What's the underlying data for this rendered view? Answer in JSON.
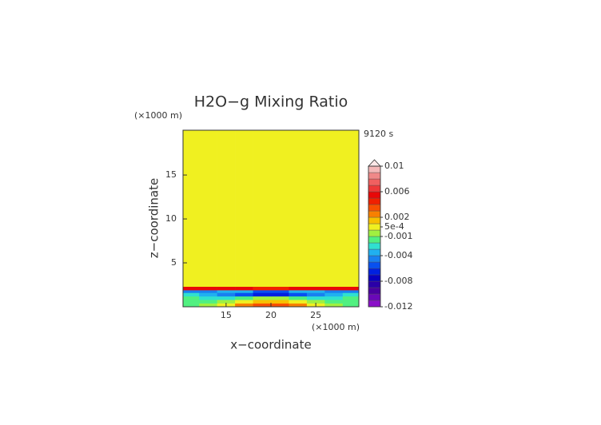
{
  "chart_data": {
    "type": "contour",
    "title": "H2O−g Mixing Ratio",
    "x_label": "x−coordinate",
    "y_label": "z−coordinate",
    "x_unit": "(×1000 m)",
    "y_unit": "(×1000 m)",
    "time_label": "9120 s",
    "xlim": [
      10.2,
      29.8
    ],
    "ylim": [
      0,
      20.1
    ],
    "xticks": [
      15,
      20,
      25
    ],
    "yticks": [
      5,
      10,
      15
    ],
    "x_edges": [
      10.2,
      12,
      14,
      16,
      18,
      20,
      22,
      24,
      26,
      28,
      29.8
    ],
    "y_edges": [
      0,
      0.4,
      0.8,
      1.2,
      1.6,
      1.9,
      2.3,
      20.1
    ],
    "z": [
      [
        -0.0015,
        -0.0005,
        0.0005,
        0.0025,
        0.0035,
        0.0035,
        0.0025,
        0.0005,
        -0.0005,
        -0.0015
      ],
      [
        -0.0015,
        -0.0015,
        -0.0005,
        0.0005,
        0.0015,
        0.0015,
        0.0005,
        -0.0005,
        -0.0015,
        -0.0015
      ],
      [
        -0.0015,
        -0.0025,
        -0.0025,
        -0.0015,
        -0.0005,
        -0.0005,
        -0.0015,
        -0.0025,
        -0.0025,
        -0.0015
      ],
      [
        -0.0025,
        -0.0035,
        -0.0045,
        -0.0055,
        -0.0065,
        -0.0065,
        -0.0055,
        -0.0045,
        -0.0035,
        -0.0025
      ],
      [
        -0.0045,
        -0.0045,
        -0.0035,
        -0.0035,
        -0.0055,
        -0.0055,
        -0.0035,
        -0.0035,
        -0.0045,
        -0.0045
      ],
      [
        0.0055,
        0.0055,
        0.0055,
        0.0055,
        0.0045,
        0.0045,
        0.0055,
        0.0055,
        0.0055,
        0.0055
      ],
      [
        0.0005,
        0.0005,
        0.0005,
        0.0005,
        0.0005,
        0.0005,
        0.0005,
        0.0005,
        0.0005,
        0.0005
      ]
    ],
    "levels": [
      -0.012,
      -0.011,
      -0.01,
      -0.009,
      -0.008,
      -0.007,
      -0.006,
      -0.005,
      -0.004,
      -0.003,
      -0.002,
      -0.001,
      0,
      0.001,
      0.002,
      0.003,
      0.004,
      0.005,
      0.006,
      0.007,
      0.008,
      0.009,
      0.01
    ],
    "colors": [
      "#8a10c8",
      "#6a08b8",
      "#4a00a0",
      "#2a00a8",
      "#0800c0",
      "#0020e0",
      "#0850f0",
      "#1880f0",
      "#20b0f0",
      "#30e0d0",
      "#50f080",
      "#a0f040",
      "#f0f020",
      "#f8c000",
      "#f88000",
      "#f85000",
      "#f02000",
      "#e80808",
      "#ee3838",
      "#f06060",
      "#f08888",
      "#f4b8b8"
    ],
    "cbar_ticks": [
      0.01,
      0.006,
      0.002,
      {
        "value": 0.0005,
        "label": "5e-4"
      },
      -0.001,
      -0.004,
      -0.008,
      -0.012
    ]
  }
}
